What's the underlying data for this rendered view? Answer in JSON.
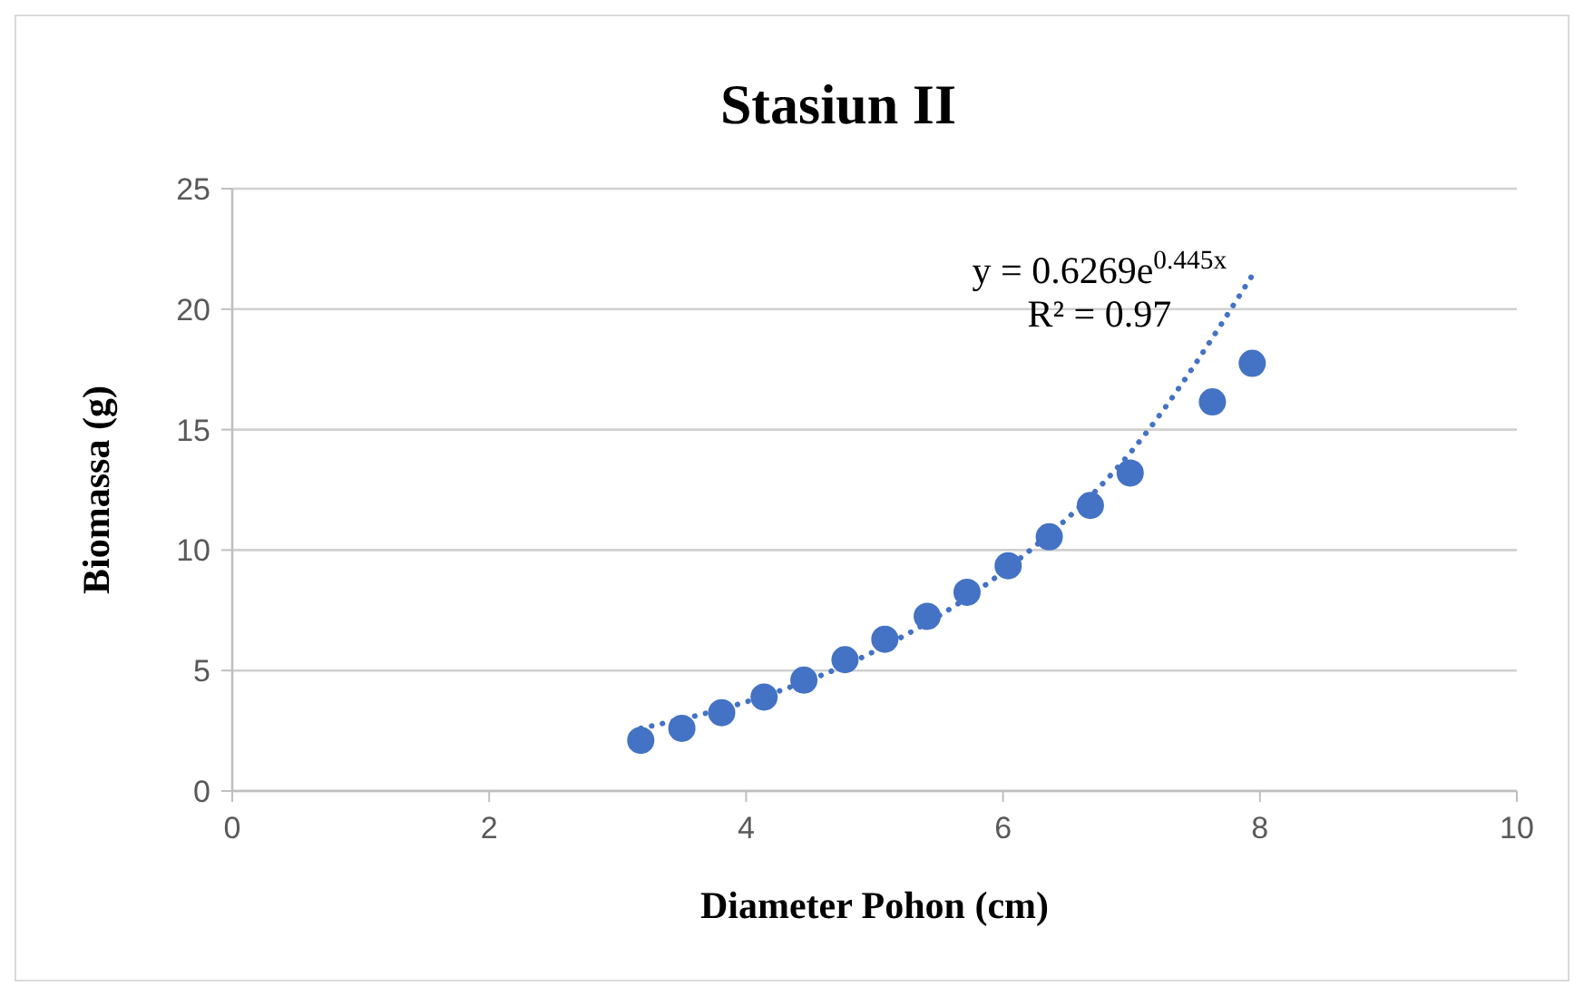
{
  "chart_data": {
    "type": "scatter",
    "title": "Stasiun II",
    "xlabel": "Diameter Pohon (cm)",
    "ylabel": "Biomassa (g)",
    "x": [
      3.18,
      3.5,
      3.81,
      4.14,
      4.45,
      4.77,
      5.08,
      5.41,
      5.72,
      6.04,
      6.36,
      6.68,
      6.99,
      7.63,
      7.94
    ],
    "series": [
      {
        "color": "#4472c4",
        "marker": "circle",
        "values": [
          2.1,
          2.6,
          3.25,
          3.9,
          4.6,
          5.45,
          6.3,
          7.25,
          8.25,
          9.35,
          10.55,
          11.85,
          13.2,
          16.15,
          17.75
        ]
      },
      {
        "type": "line",
        "color": "#4472c4",
        "line_style": "dotted",
        "marker": "none",
        "x": [
          3.18,
          4,
          5,
          6,
          7,
          7.94
        ],
        "values": [
          2.6,
          3.7,
          5.8,
          9.1,
          14.1,
          21.4
        ]
      }
    ],
    "xlim": [
      0,
      10
    ],
    "xticks": [
      0,
      2,
      4,
      6,
      8,
      10
    ],
    "ylim": [
      0,
      25
    ],
    "yticks": [
      0,
      5,
      10,
      15,
      20,
      25
    ],
    "grid": "y",
    "annotations": [
      "y = 0.6269e$^{0.445x}$",
      "R² = 0.97"
    ]
  }
}
